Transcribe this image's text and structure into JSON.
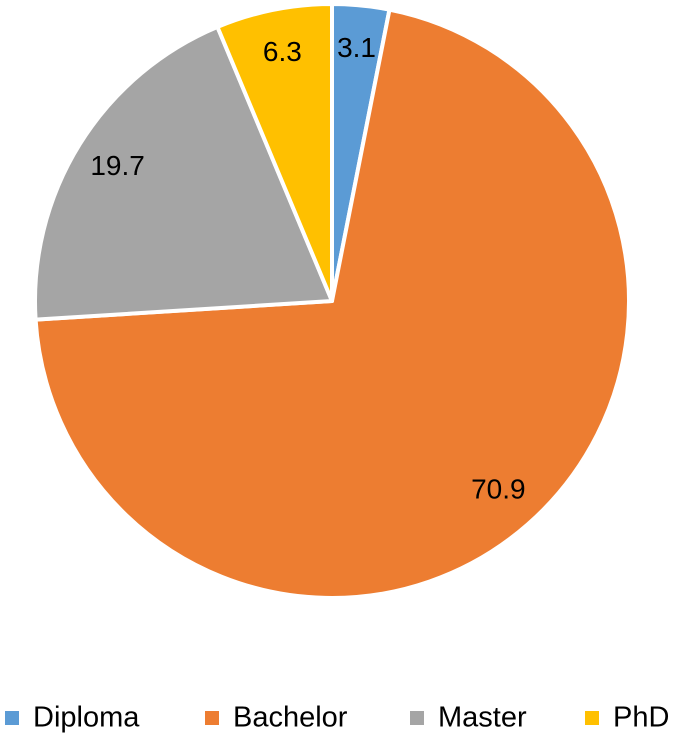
{
  "chart_data": {
    "type": "pie",
    "categories": [
      "Diploma",
      "Bachelor",
      "Master",
      "PhD"
    ],
    "values": [
      3.1,
      70.9,
      19.7,
      6.3
    ],
    "colors": [
      "#5b9bd5",
      "#ed7d31",
      "#a5a5a5",
      "#ffc000"
    ],
    "legend": "bottom"
  }
}
